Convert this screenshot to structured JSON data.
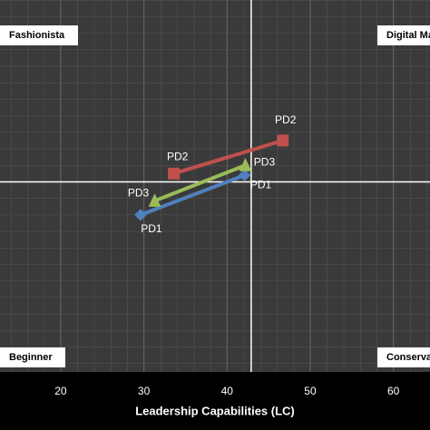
{
  "chart_data": {
    "type": "line",
    "xlabel": "Leadership Capabilities (LC)",
    "xlim": [
      12.7,
      64.4
    ],
    "xticks": [
      20,
      30,
      40,
      50,
      60
    ],
    "ylim": [
      20,
      65
    ],
    "grid": true,
    "reference_lines": {
      "x": 42.9,
      "y": 43
    },
    "quadrants": {
      "top_left": "Fashionista",
      "top_right": "Digital Ma",
      "bottom_left": "Beginner",
      "bottom_right": "Conservat"
    },
    "series": [
      {
        "name": "PD1",
        "color": "#4f81bd",
        "marker": "diamond",
        "x": [
          29.6,
          42.1
        ],
        "values": [
          39.0,
          43.8
        ]
      },
      {
        "name": "PD2",
        "color": "#c0504d",
        "marker": "square",
        "x": [
          33.6,
          46.7
        ],
        "values": [
          44.0,
          48.0
        ]
      },
      {
        "name": "PD3",
        "color": "#9bbb59",
        "marker": "triangle",
        "x": [
          31.3,
          42.2
        ],
        "values": [
          40.7,
          45.0
        ]
      }
    ]
  }
}
